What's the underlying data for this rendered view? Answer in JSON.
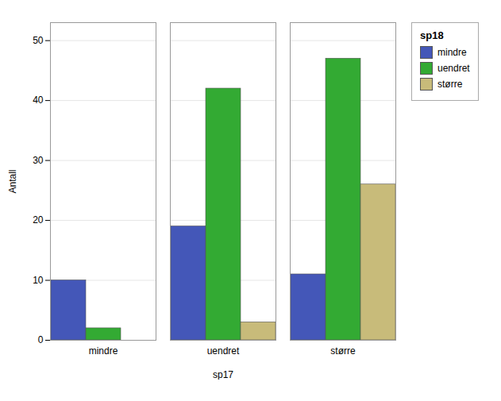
{
  "chart_data": {
    "type": "bar",
    "xlabel": "sp17",
    "ylabel": "Antall",
    "legend_title": "sp18",
    "categories": [
      "mindre",
      "uendret",
      "større"
    ],
    "series": [
      {
        "name": "mindre",
        "color": "#4457b8",
        "values": [
          10,
          19,
          11
        ]
      },
      {
        "name": "uendret",
        "color": "#33aa33",
        "values": [
          2,
          42,
          47
        ]
      },
      {
        "name": "større",
        "color": "#c8bb7a",
        "values": [
          0,
          3,
          26
        ]
      }
    ],
    "ylim": [
      0,
      53
    ],
    "yticks": [
      0,
      10,
      20,
      30,
      40,
      50
    ],
    "grid": true,
    "legend": "right"
  }
}
